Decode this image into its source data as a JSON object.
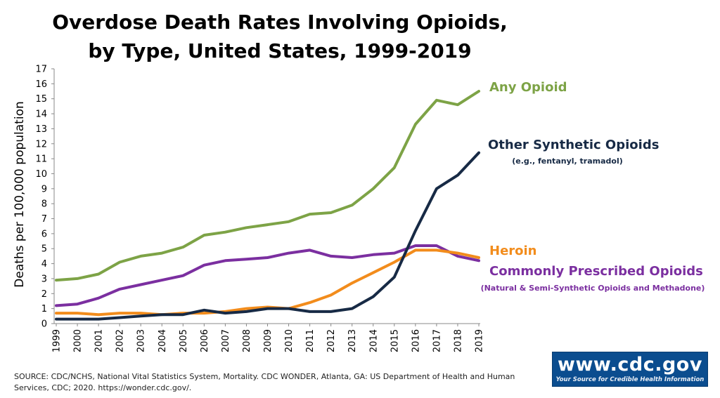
{
  "chart_data": {
    "type": "line",
    "title_lines": [
      "Overdose Death Rates Involving Opioids,",
      "by Type, United States, 1999-2019"
    ],
    "ylabel": "Deaths per 100,000 population",
    "xlabel": "",
    "ylim": [
      0,
      17
    ],
    "yticks": [
      0,
      1,
      2,
      3,
      4,
      5,
      6,
      7,
      8,
      9,
      10,
      11,
      12,
      13,
      14,
      15,
      16,
      17
    ],
    "x": [
      "1999",
      "2000",
      "2001",
      "2002",
      "2003",
      "2004",
      "2005",
      "2006",
      "2007",
      "2008",
      "2009",
      "2010",
      "2011",
      "2012",
      "2013",
      "2014",
      "2015",
      "2016",
      "2017",
      "2018",
      "2019"
    ],
    "grid": false,
    "legend": "direct labels at right",
    "series": [
      {
        "name": "Any Opioid",
        "sublabel": "",
        "color": "#7da346",
        "values": [
          2.9,
          3.0,
          3.3,
          4.1,
          4.5,
          4.7,
          5.1,
          5.9,
          6.1,
          6.4,
          6.6,
          6.8,
          7.3,
          7.4,
          7.9,
          9.0,
          10.4,
          13.3,
          14.9,
          14.6,
          15.5
        ]
      },
      {
        "name": "Other Synthetic Opioids",
        "sublabel": "(e.g., fentanyl, tramadol)",
        "color": "#172a45",
        "values": [
          0.3,
          0.3,
          0.3,
          0.4,
          0.5,
          0.6,
          0.6,
          0.9,
          0.7,
          0.8,
          1.0,
          1.0,
          0.8,
          0.8,
          1.0,
          1.8,
          3.1,
          6.2,
          9.0,
          9.9,
          11.4
        ]
      },
      {
        "name": "Heroin",
        "sublabel": "",
        "color": "#f28c1c",
        "values": [
          0.7,
          0.7,
          0.6,
          0.7,
          0.7,
          0.6,
          0.7,
          0.7,
          0.8,
          1.0,
          1.1,
          1.0,
          1.4,
          1.9,
          2.7,
          3.4,
          4.1,
          4.9,
          4.9,
          4.7,
          4.4
        ]
      },
      {
        "name": "Commonly Prescribed Opioids",
        "sublabel": "(Natural & Semi-Synthetic Opioids and Methadone)",
        "color": "#7b2fa0",
        "values": [
          1.2,
          1.3,
          1.7,
          2.3,
          2.6,
          2.9,
          3.2,
          3.9,
          4.2,
          4.3,
          4.4,
          4.7,
          4.9,
          4.5,
          4.4,
          4.6,
          4.7,
          5.2,
          5.2,
          4.5,
          4.2
        ]
      }
    ]
  },
  "source_note": "SOURCE: CDC/NCHS, National Vital Statistics System, Mortality. CDC WONDER, Atlanta, GA: US Department of Health and Human Services, CDC; 2020. https://wonder.cdc.gov/.",
  "logo": {
    "main_text": "www.cdc.gov",
    "tagline": "Your Source for Credible Health Information",
    "color": "#0b4d8f"
  }
}
